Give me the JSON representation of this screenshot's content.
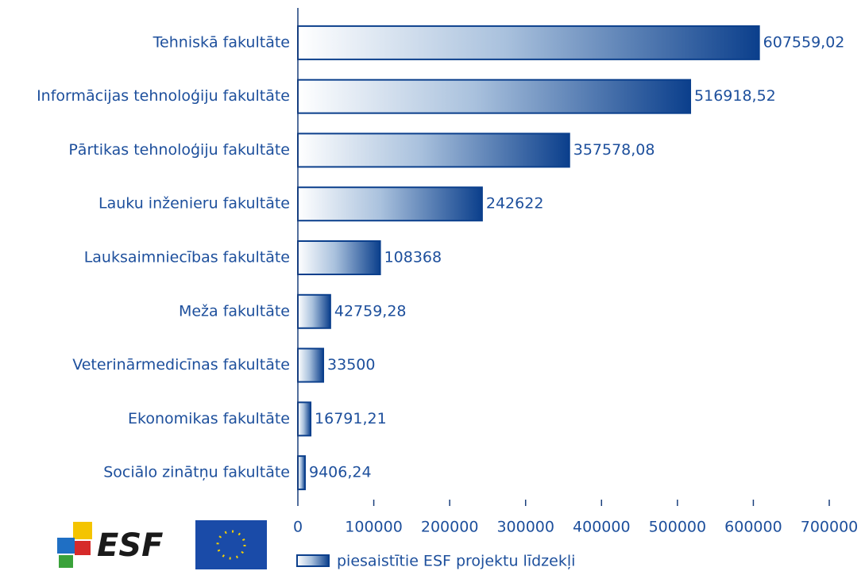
{
  "chart_data": {
    "type": "barh",
    "categories": [
      "Tehniskā fakultāte",
      "Informācijas tehnoloģiju fakultāte",
      "Pārtikas tehnoloģiju fakultāte",
      "Lauku inženieru fakultāte",
      "Lauksaimniecības fakultāte",
      "Meža fakultāte",
      "Veterinārmedicīnas fakultāte",
      "Ekonomikas fakultāte",
      "Sociālo zinātņu fakultāte"
    ],
    "series": [
      {
        "name": "piesaistītie ESF projektu līdzekļi",
        "color": "#0b3f8c",
        "values": [
          607559.02,
          516918.52,
          357578.08,
          242622,
          108368,
          42759.28,
          33500,
          16791.21,
          9406.24
        ],
        "value_labels": [
          "607559,02",
          "516918,52",
          "357578,08",
          "242622",
          "108368",
          "42759,28",
          "33500",
          "16791,21",
          "9406,24"
        ]
      }
    ],
    "xlim": [
      0,
      700000
    ],
    "xticks": [
      0,
      100000,
      200000,
      300000,
      400000,
      500000,
      600000,
      700000
    ],
    "logo_text": "ESF"
  }
}
